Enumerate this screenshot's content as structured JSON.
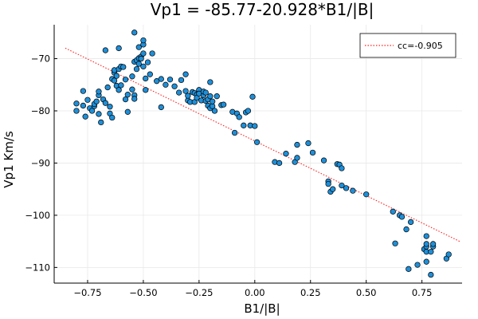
{
  "chart_data": {
    "type": "scatter",
    "title": "Vp1 = -85.77-20.928*B1/|B|",
    "xlabel": "B1/|B|",
    "ylabel": "Vp1 Km/s",
    "xlim": [
      -0.9,
      0.93
    ],
    "ylim": [
      -113,
      -63.5
    ],
    "xticks": [
      -0.75,
      -0.5,
      -0.25,
      0.0,
      0.25,
      0.5,
      0.75
    ],
    "xtick_labels": [
      "−0.75",
      "−0.50",
      "−0.25",
      "0.00",
      "0.25",
      "0.50",
      "0.75"
    ],
    "yticks": [
      -70,
      -80,
      -90,
      -100,
      -110
    ],
    "ytick_labels": [
      "−70",
      "−80",
      "−90",
      "−100",
      "−110"
    ],
    "grid": true,
    "legend_position": "top-right",
    "colors": {
      "points": "#1f8fd8",
      "point_edge": "#000000",
      "fit": "#ff2020",
      "grid": "#e8e8e8"
    },
    "fit_line": {
      "name": "cc=-0.905",
      "style": "dotted",
      "intercept": -85.77,
      "slope": -20.928,
      "x_range": [
        -0.85,
        0.92
      ]
    },
    "series": [
      {
        "type": "scatter",
        "points": [
          [
            -0.8,
            -78.6
          ],
          [
            -0.8,
            -80.0
          ],
          [
            -0.77,
            -76.2
          ],
          [
            -0.77,
            -79.0
          ],
          [
            -0.76,
            -81.1
          ],
          [
            -0.75,
            -77.9
          ],
          [
            -0.74,
            -79.5
          ],
          [
            -0.73,
            -80.0
          ],
          [
            -0.72,
            -79.1
          ],
          [
            -0.72,
            -78.7
          ],
          [
            -0.71,
            -78.2
          ],
          [
            -0.7,
            -80.6
          ],
          [
            -0.7,
            -77.0
          ],
          [
            -0.7,
            -76.3
          ],
          [
            -0.69,
            -82.2
          ],
          [
            -0.68,
            -77.8
          ],
          [
            -0.67,
            -78.5
          ],
          [
            -0.67,
            -68.4
          ],
          [
            -0.66,
            -75.5
          ],
          [
            -0.65,
            -79.2
          ],
          [
            -0.65,
            -80.5
          ],
          [
            -0.64,
            -81.3
          ],
          [
            -0.64,
            -73.9
          ],
          [
            -0.63,
            -72.7
          ],
          [
            -0.63,
            -74.2
          ],
          [
            -0.63,
            -72.2
          ],
          [
            -0.62,
            -75.2
          ],
          [
            -0.62,
            -73.3
          ],
          [
            -0.61,
            -72.0
          ],
          [
            -0.61,
            -76.0
          ],
          [
            -0.61,
            -68.0
          ],
          [
            -0.6,
            -71.5
          ],
          [
            -0.6,
            -75.1
          ],
          [
            -0.59,
            -71.6
          ],
          [
            -0.58,
            -74.0
          ],
          [
            -0.58,
            -77.8
          ],
          [
            -0.57,
            -80.2
          ],
          [
            -0.57,
            -76.9
          ],
          [
            -0.55,
            -73.4
          ],
          [
            -0.55,
            -75.9
          ],
          [
            -0.54,
            -70.6
          ],
          [
            -0.54,
            -77.0
          ],
          [
            -0.54,
            -77.7
          ],
          [
            -0.54,
            -65.0
          ],
          [
            -0.53,
            -70.3
          ],
          [
            -0.53,
            -72.0
          ],
          [
            -0.52,
            -71.0
          ],
          [
            -0.52,
            -69.9
          ],
          [
            -0.52,
            -67.8
          ],
          [
            -0.51,
            -69.6
          ],
          [
            -0.51,
            -70.0
          ],
          [
            -0.5,
            -67.3
          ],
          [
            -0.5,
            -69.0
          ],
          [
            -0.5,
            -66.5
          ],
          [
            -0.5,
            -71.5
          ],
          [
            -0.49,
            -73.8
          ],
          [
            -0.49,
            -76.0
          ],
          [
            -0.48,
            -70.7
          ],
          [
            -0.47,
            -73.0
          ],
          [
            -0.46,
            -69.0
          ],
          [
            -0.44,
            -74.3
          ],
          [
            -0.42,
            -73.9
          ],
          [
            -0.42,
            -79.3
          ],
          [
            -0.4,
            -75.0
          ],
          [
            -0.38,
            -74.0
          ],
          [
            -0.36,
            -75.3
          ],
          [
            -0.34,
            -76.5
          ],
          [
            -0.33,
            -74.1
          ],
          [
            -0.31,
            -76.2
          ],
          [
            -0.31,
            -73.0
          ],
          [
            -0.3,
            -78.0
          ],
          [
            -0.3,
            -77.1
          ],
          [
            -0.29,
            -78.3
          ],
          [
            -0.28,
            -76.4
          ],
          [
            -0.27,
            -78.3
          ],
          [
            -0.27,
            -76.6
          ],
          [
            -0.26,
            -76.9
          ],
          [
            -0.26,
            -77.5
          ],
          [
            -0.25,
            -76.0
          ],
          [
            -0.25,
            -76.7
          ],
          [
            -0.24,
            -78.0
          ],
          [
            -0.23,
            -77.0
          ],
          [
            -0.23,
            -76.3
          ],
          [
            -0.22,
            -78.1
          ],
          [
            -0.22,
            -76.5
          ],
          [
            -0.21,
            -77.8
          ],
          [
            -0.21,
            -79.0
          ],
          [
            -0.2,
            -79.5
          ],
          [
            -0.2,
            -77.2
          ],
          [
            -0.2,
            -74.5
          ],
          [
            -0.19,
            -79.1
          ],
          [
            -0.19,
            -78.2
          ],
          [
            -0.18,
            -80.0
          ],
          [
            -0.17,
            -77.2
          ],
          [
            -0.15,
            -78.9
          ],
          [
            -0.14,
            -78.8
          ],
          [
            -0.1,
            -80.2
          ],
          [
            -0.09,
            -84.2
          ],
          [
            -0.08,
            -80.5
          ],
          [
            -0.07,
            -81.2
          ],
          [
            -0.05,
            -82.8
          ],
          [
            -0.04,
            -80.3
          ],
          [
            -0.03,
            -80.0
          ],
          [
            -0.02,
            -82.8
          ],
          [
            -0.01,
            -77.3
          ],
          [
            0.0,
            -82.9
          ],
          [
            0.01,
            -86.0
          ],
          [
            0.09,
            -89.8
          ],
          [
            0.11,
            -90.0
          ],
          [
            0.14,
            -88.2
          ],
          [
            0.18,
            -89.8
          ],
          [
            0.19,
            -89.0
          ],
          [
            0.19,
            -86.5
          ],
          [
            0.24,
            -86.2
          ],
          [
            0.26,
            -88.0
          ],
          [
            0.31,
            -89.5
          ],
          [
            0.33,
            -93.5
          ],
          [
            0.33,
            -94.0
          ],
          [
            0.34,
            -95.5
          ],
          [
            0.35,
            -95.0
          ],
          [
            0.37,
            -90.2
          ],
          [
            0.38,
            -90.3
          ],
          [
            0.39,
            -91.0
          ],
          [
            0.39,
            -94.3
          ],
          [
            0.41,
            -94.8
          ],
          [
            0.44,
            -95.3
          ],
          [
            0.5,
            -96.0
          ],
          [
            0.62,
            -99.3
          ],
          [
            0.63,
            -105.4
          ],
          [
            0.65,
            -100.0
          ],
          [
            0.66,
            -100.3
          ],
          [
            0.68,
            -102.7
          ],
          [
            0.69,
            -110.3
          ],
          [
            0.7,
            -101.3
          ],
          [
            0.73,
            -109.5
          ],
          [
            0.76,
            -106.5
          ],
          [
            0.77,
            -107.0
          ],
          [
            0.77,
            -106.0
          ],
          [
            0.77,
            -104.0
          ],
          [
            0.77,
            -105.5
          ],
          [
            0.77,
            -108.9
          ],
          [
            0.79,
            -111.4
          ],
          [
            0.79,
            -107.0
          ],
          [
            0.8,
            -106.0
          ],
          [
            0.8,
            -105.5
          ],
          [
            0.86,
            -108.3
          ],
          [
            0.87,
            -107.5
          ]
        ]
      }
    ]
  }
}
